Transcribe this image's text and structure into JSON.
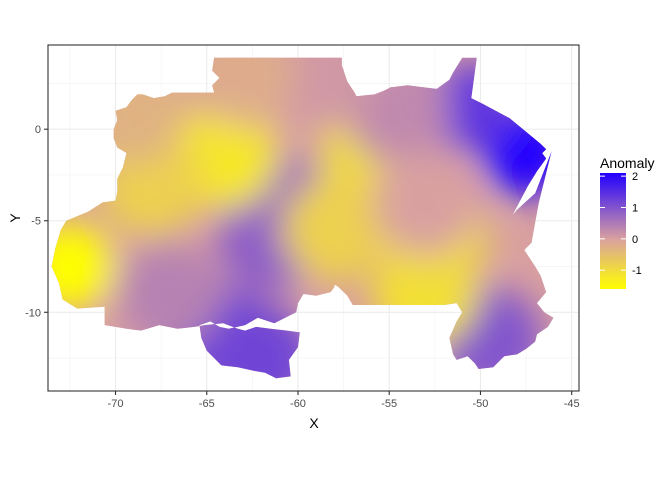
{
  "chart_data": {
    "type": "heatmap",
    "title": "",
    "xlabel": "X",
    "ylabel": "Y",
    "xlim": [
      -73.7,
      -44.6
    ],
    "ylim": [
      -14.3,
      4.6
    ],
    "x_ticks": [
      -70,
      -65,
      -60,
      -55,
      -50,
      -45
    ],
    "x_tick_labels": [
      "-70",
      "-65",
      "-60",
      "-55",
      "-50",
      "-45"
    ],
    "y_ticks": [
      0,
      -5,
      -10
    ],
    "y_tick_labels": [
      "0",
      "-5",
      "-10"
    ],
    "grid": true,
    "legend": {
      "title": "Anomaly",
      "placement": "right",
      "breaks": [
        2,
        1,
        0,
        -1
      ],
      "break_labels": [
        "2",
        "1",
        "0",
        "-1"
      ],
      "range": [
        -1.6,
        2.1
      ],
      "color_low": "#FFFF00",
      "color_mid": "#D9A0A0",
      "color_high": "#2200FF"
    },
    "hotspots": [
      {
        "x": -47.5,
        "y": -1.3,
        "value": 2.1
      },
      {
        "x": -50.5,
        "y": 1.2,
        "value": 1.4
      },
      {
        "x": -49.5,
        "y": -11.5,
        "value": 1.0
      },
      {
        "x": -64.0,
        "y": -11.5,
        "value": 1.2
      },
      {
        "x": -62.0,
        "y": -12.5,
        "value": 1.2
      },
      {
        "x": -61.5,
        "y": -6.0,
        "value": 0.9
      },
      {
        "x": -60.0,
        "y": -4.5,
        "value": 0.8
      },
      {
        "x": -67.0,
        "y": -9.0,
        "value": 0.4
      },
      {
        "x": -72.5,
        "y": -7.5,
        "value": -1.6
      },
      {
        "x": -64.0,
        "y": -1.5,
        "value": -1.2
      },
      {
        "x": -56.0,
        "y": -1.5,
        "value": -1.0
      },
      {
        "x": -53.0,
        "y": -9.0,
        "value": -1.1
      },
      {
        "x": -52.5,
        "y": -6.0,
        "value": -1.0
      },
      {
        "x": -58.0,
        "y": -5.5,
        "value": -0.8
      },
      {
        "x": -68.0,
        "y": -3.0,
        "value": -0.8
      },
      {
        "x": -54.5,
        "y": 1.0,
        "value": 0.3
      },
      {
        "x": -58.5,
        "y": 3.0,
        "value": 0.1
      },
      {
        "x": -63.0,
        "y": 3.0,
        "value": -0.2
      },
      {
        "x": -69.0,
        "y": 1.0,
        "value": -0.3
      },
      {
        "x": -53.0,
        "y": -4.0,
        "value": 0.0
      }
    ],
    "region_outline": [
      [
        -68.5,
        1.9
      ],
      [
        -67.9,
        1.7
      ],
      [
        -67.3,
        1.8
      ],
      [
        -66.9,
        2.0
      ],
      [
        -64.6,
        2.0
      ],
      [
        -64.7,
        2.4
      ],
      [
        -64.3,
        2.8
      ],
      [
        -64.7,
        3.2
      ],
      [
        -64.6,
        3.9
      ],
      [
        -57.6,
        3.9
      ],
      [
        -57.6,
        3.5
      ],
      [
        -57.3,
        2.6
      ],
      [
        -56.9,
        2.0
      ],
      [
        -56.8,
        1.8
      ],
      [
        -55.8,
        1.9
      ],
      [
        -55.3,
        2.1
      ],
      [
        -54.9,
        2.3
      ],
      [
        -54.8,
        2.3
      ],
      [
        -54.0,
        2.4
      ],
      [
        -53.2,
        2.3
      ],
      [
        -52.4,
        2.2
      ],
      [
        -51.7,
        2.7
      ],
      [
        -51.5,
        3.1
      ],
      [
        -51.0,
        3.9
      ],
      [
        -50.2,
        3.9
      ],
      [
        -50.5,
        1.7
      ],
      [
        -49.9,
        1.4
      ],
      [
        -48.4,
        0.6
      ],
      [
        -46.7,
        -0.8
      ],
      [
        -46.4,
        -1.1
      ],
      [
        -47.0,
        -1.7
      ],
      [
        -47.8,
        -2.1
      ],
      [
        -48.3,
        -2.4
      ],
      [
        -48.6,
        -1.6
      ],
      [
        -49.0,
        -1.1
      ],
      [
        -49.8,
        -0.3
      ],
      [
        -48.4,
        0.1
      ],
      [
        -47.0,
        -0.8
      ],
      [
        -46.4,
        -1.6
      ],
      [
        -46.9,
        -2.3
      ],
      [
        -47.4,
        -3.1
      ],
      [
        -48.3,
        -4.8
      ],
      [
        -48.5,
        -5.0
      ],
      [
        -48.0,
        -4.4
      ],
      [
        -47.0,
        -3.5
      ],
      [
        -46.1,
        -1.2
      ],
      [
        -46.8,
        -4.0
      ],
      [
        -47.0,
        -5.1
      ],
      [
        -47.2,
        -6.2
      ],
      [
        -47.6,
        -6.6
      ],
      [
        -47.0,
        -7.5
      ],
      [
        -46.7,
        -8.0
      ],
      [
        -46.4,
        -8.9
      ],
      [
        -46.9,
        -9.5
      ],
      [
        -46.5,
        -10.0
      ],
      [
        -46.0,
        -10.3
      ],
      [
        -46.3,
        -10.8
      ],
      [
        -46.9,
        -11.2
      ],
      [
        -47.0,
        -11.6
      ],
      [
        -47.5,
        -12.0
      ],
      [
        -48.0,
        -12.3
      ],
      [
        -48.7,
        -12.4
      ],
      [
        -49.3,
        -13.0
      ],
      [
        -50.1,
        -13.1
      ],
      [
        -50.3,
        -12.8
      ],
      [
        -50.7,
        -12.4
      ],
      [
        -51.3,
        -12.6
      ],
      [
        -51.5,
        -12.3
      ],
      [
        -51.7,
        -11.4
      ],
      [
        -51.3,
        -10.5
      ],
      [
        -51.0,
        -10.0
      ],
      [
        -51.3,
        -9.5
      ],
      [
        -52.0,
        -9.6
      ],
      [
        -53.5,
        -9.6
      ],
      [
        -54.9,
        -9.6
      ],
      [
        -56.2,
        -9.6
      ],
      [
        -57.0,
        -9.6
      ],
      [
        -57.3,
        -9.1
      ],
      [
        -57.8,
        -8.6
      ],
      [
        -58.6,
        -8.1
      ],
      [
        -58.5,
        -7.4
      ],
      [
        -57.9,
        -7.5
      ],
      [
        -58.0,
        -8.6
      ],
      [
        -58.2,
        -8.9
      ],
      [
        -59.0,
        -9.1
      ],
      [
        -59.7,
        -9.0
      ],
      [
        -60.0,
        -9.5
      ],
      [
        -60.1,
        -10.0
      ],
      [
        -61.3,
        -10.6
      ],
      [
        -62.2,
        -10.3
      ],
      [
        -62.9,
        -10.7
      ],
      [
        -63.8,
        -10.9
      ],
      [
        -64.3,
        -10.8
      ],
      [
        -64.8,
        -10.5
      ],
      [
        -65.4,
        -10.7
      ],
      [
        -65.3,
        -11.4
      ],
      [
        -65.0,
        -12.1
      ],
      [
        -64.2,
        -12.9
      ],
      [
        -63.3,
        -13.0
      ],
      [
        -62.4,
        -13.2
      ],
      [
        -61.8,
        -13.3
      ],
      [
        -61.2,
        -13.6
      ],
      [
        -60.4,
        -13.5
      ],
      [
        -60.5,
        -12.6
      ],
      [
        -60.0,
        -11.9
      ],
      [
        -59.9,
        -11.1
      ],
      [
        -60.6,
        -11.0
      ],
      [
        -61.5,
        -10.9
      ],
      [
        -62.3,
        -10.8
      ],
      [
        -62.9,
        -11.0
      ],
      [
        -63.3,
        -10.9
      ],
      [
        -64.1,
        -10.6
      ],
      [
        -65.1,
        -10.7
      ],
      [
        -65.7,
        -10.8
      ],
      [
        -66.6,
        -10.9
      ],
      [
        -67.6,
        -10.7
      ],
      [
        -68.6,
        -11.0
      ],
      [
        -69.4,
        -10.9
      ],
      [
        -70.6,
        -10.7
      ],
      [
        -70.6,
        -9.7
      ],
      [
        -72.1,
        -9.8
      ],
      [
        -72.9,
        -9.3
      ],
      [
        -73.1,
        -8.4
      ],
      [
        -73.5,
        -7.5
      ],
      [
        -73.3,
        -6.5
      ],
      [
        -73.0,
        -5.5
      ],
      [
        -72.7,
        -5.0
      ],
      [
        -71.5,
        -4.5
      ],
      [
        -70.7,
        -4.0
      ],
      [
        -70.0,
        -3.9
      ],
      [
        -69.9,
        -3.4
      ],
      [
        -69.9,
        -2.7
      ],
      [
        -69.6,
        -2.1
      ],
      [
        -69.4,
        -1.3
      ],
      [
        -69.9,
        -1.0
      ],
      [
        -70.1,
        -0.5
      ],
      [
        -70.1,
        0.0
      ],
      [
        -69.9,
        0.5
      ],
      [
        -70.0,
        1.0
      ],
      [
        -69.4,
        1.2
      ],
      [
        -69.1,
        1.6
      ],
      [
        -68.8,
        1.9
      ]
    ]
  }
}
